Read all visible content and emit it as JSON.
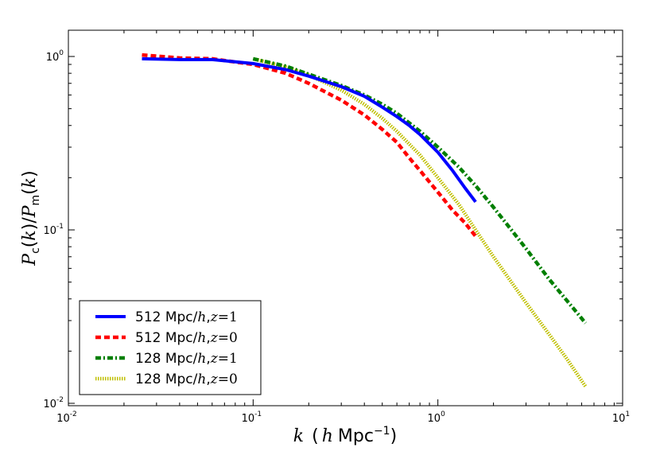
{
  "chart_data": {
    "type": "line",
    "title": "",
    "xlabel": "k  (h Mpc^-1)",
    "ylabel": "P_c(k)/P_m(k)",
    "xscale": "log",
    "yscale": "log",
    "xlim": [
      0.01,
      10
    ],
    "ylim": [
      0.01,
      1.5
    ],
    "grid": false,
    "legend_position": "lower-left",
    "x_ticks": [
      {
        "base": "10",
        "exp": "-2"
      },
      {
        "base": "10",
        "exp": "-1"
      },
      {
        "base": "10",
        "exp": "0"
      },
      {
        "base": "10",
        "exp": "1"
      }
    ],
    "y_ticks": [
      {
        "base": "10",
        "exp": "-2"
      },
      {
        "base": "10",
        "exp": "-1"
      },
      {
        "base": "10",
        "exp": "0"
      }
    ],
    "series": [
      {
        "name": "512 Mpc/h, z=1",
        "legend_prefix": "512 Mpc/",
        "legend_h": "h",
        "legend_z": "z",
        "legend_eq": "=1",
        "color": "#0000ff",
        "style": "solid",
        "x": [
          0.025,
          0.04,
          0.06,
          0.1,
          0.15,
          0.2,
          0.3,
          0.4,
          0.5,
          0.6,
          0.7,
          0.8,
          1.0,
          1.2,
          1.4,
          1.6
        ],
        "y": [
          0.97,
          0.96,
          0.96,
          0.91,
          0.84,
          0.77,
          0.67,
          0.59,
          0.51,
          0.45,
          0.4,
          0.355,
          0.28,
          0.22,
          0.175,
          0.145
        ]
      },
      {
        "name": "512 Mpc/h, z=0",
        "legend_prefix": "512 Mpc/",
        "legend_h": "h",
        "legend_z": "z",
        "legend_eq": "=0",
        "color": "#ff0000",
        "style": "dashed",
        "x": [
          0.025,
          0.04,
          0.06,
          0.1,
          0.15,
          0.2,
          0.3,
          0.4,
          0.5,
          0.6,
          0.7,
          0.8,
          1.0,
          1.2,
          1.4,
          1.6
        ],
        "y": [
          1.02,
          0.98,
          0.97,
          0.9,
          0.8,
          0.7,
          0.56,
          0.46,
          0.38,
          0.32,
          0.26,
          0.22,
          0.165,
          0.13,
          0.11,
          0.092
        ]
      },
      {
        "name": "128 Mpc/h, z=1",
        "legend_prefix": "128 Mpc/",
        "legend_h": "h",
        "legend_z": "z",
        "legend_eq": "=1",
        "color": "#007f00",
        "style": "dashdot",
        "x": [
          0.1,
          0.15,
          0.2,
          0.3,
          0.4,
          0.5,
          0.6,
          0.8,
          1.0,
          1.3,
          1.6,
          2.0,
          2.5,
          3.0,
          4.0,
          5.0,
          6.3
        ],
        "y": [
          0.97,
          0.88,
          0.79,
          0.68,
          0.6,
          0.53,
          0.47,
          0.37,
          0.3,
          0.23,
          0.18,
          0.135,
          0.1,
          0.078,
          0.052,
          0.039,
          0.029
        ]
      },
      {
        "name": "128 Mpc/h, z=0",
        "legend_prefix": "128 Mpc/",
        "legend_h": "h",
        "legend_z": "z",
        "legend_eq": "=0",
        "color": "#bfbf00",
        "style": "dotted",
        "x": [
          0.1,
          0.15,
          0.2,
          0.3,
          0.4,
          0.5,
          0.6,
          0.8,
          1.0,
          1.3,
          1.6,
          2.0,
          2.5,
          3.0,
          4.0,
          5.0,
          6.3
        ],
        "y": [
          0.97,
          0.87,
          0.78,
          0.64,
          0.53,
          0.44,
          0.37,
          0.27,
          0.2,
          0.14,
          0.1,
          0.07,
          0.05,
          0.038,
          0.025,
          0.018,
          0.0125
        ]
      }
    ]
  }
}
